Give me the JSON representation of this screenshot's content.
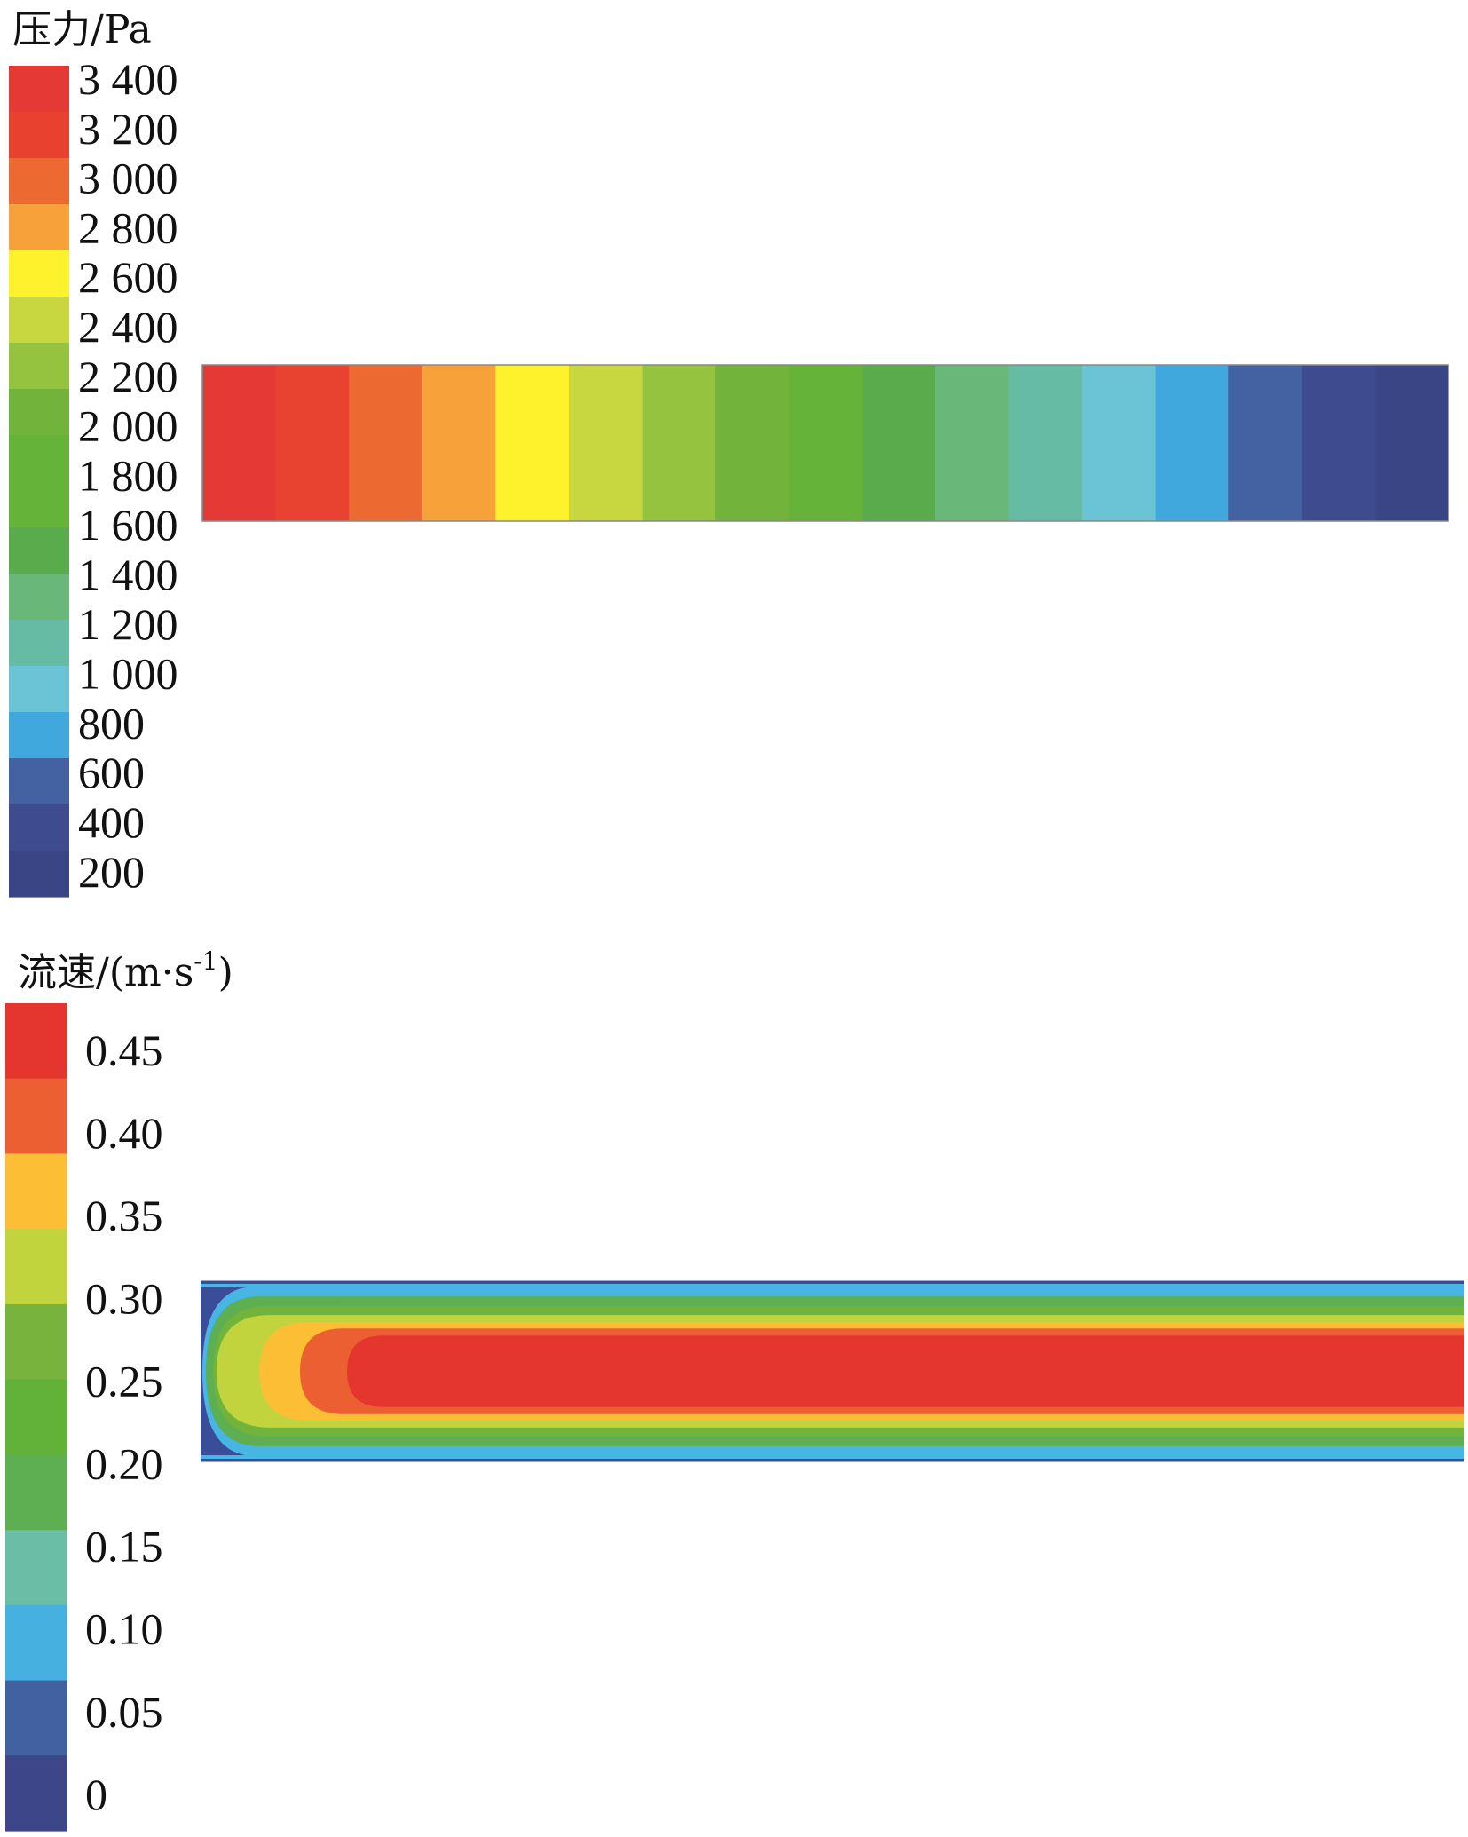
{
  "chart_data": [
    {
      "type": "heatmap",
      "subtype": "cfd-contour",
      "title": "压力/Pa",
      "colorbar": {
        "orientation": "vertical",
        "position": "left",
        "tick_labels": [
          "3 400",
          "3 200",
          "3 000",
          "2 800",
          "2 600",
          "2 400",
          "2 200",
          "2 000",
          "1 800",
          "1 600",
          "1 400",
          "1 200",
          "1 000",
          "800",
          "600",
          "400",
          "200"
        ],
        "tick_values": [
          3400,
          3200,
          3000,
          2800,
          2600,
          2400,
          2200,
          2000,
          1800,
          1600,
          1400,
          1200,
          1000,
          800,
          600,
          400,
          200
        ],
        "colors_top_to_bottom": [
          "#e53935",
          "#e8412f",
          "#ec6a32",
          "#f6a13a",
          "#fdf22c",
          "#c8d740",
          "#95c23f",
          "#72b43b",
          "#66b33a",
          "#66b33a",
          "#5aab4b",
          "#6ab77a",
          "#66bba4",
          "#6bc3d6",
          "#40a8dc",
          "#4461a1",
          "#3e4c8f",
          "#3a4585"
        ]
      },
      "field": {
        "description_of_bands_left_to_right_pa": [
          3400,
          3200,
          3000,
          2800,
          2600,
          2400,
          2200,
          2000,
          1800,
          1600,
          1400,
          1200,
          1000,
          800,
          600,
          400,
          200
        ],
        "band_colors": [
          "#e53935",
          "#e84330",
          "#ec6a32",
          "#f6a13a",
          "#fdf22c",
          "#c8d740",
          "#95c23f",
          "#72b43b",
          "#66b33a",
          "#5aab4b",
          "#6ab77a",
          "#66bba4",
          "#6bc3d6",
          "#40a8dc",
          "#4461a1",
          "#3e4c8f",
          "#3a4585"
        ]
      }
    },
    {
      "type": "heatmap",
      "subtype": "cfd-contour",
      "title": "流速/(m·s",
      "title_superscript": "-1",
      "title_close": ")",
      "colorbar": {
        "orientation": "vertical",
        "position": "left",
        "tick_labels": [
          "0.45",
          "0.40",
          "0.35",
          "0.30",
          "0.25",
          "0.20",
          "0.15",
          "0.10",
          "0.05",
          "0"
        ],
        "tick_values": [
          0.45,
          0.4,
          0.35,
          0.3,
          0.25,
          0.2,
          0.15,
          0.1,
          0.05,
          0
        ],
        "colors_top_to_bottom": [
          "#e5352f",
          "#ec5f33",
          "#fbbe35",
          "#c2d43d",
          "#77b33d",
          "#62b23a",
          "#5eae52",
          "#6bbda5",
          "#46b1e1",
          "#4261a1",
          "#3c4688"
        ]
      },
      "field": {
        "profile": "developing laminar pipe flow; max velocity at centerline, zero at walls",
        "layer_colors_outer_to_center": [
          "#3a4d98",
          "#48b6e4",
          "#5eae52",
          "#72b43b",
          "#c2d43d",
          "#fbbe35",
          "#ec5f33",
          "#e5352f"
        ]
      }
    }
  ]
}
